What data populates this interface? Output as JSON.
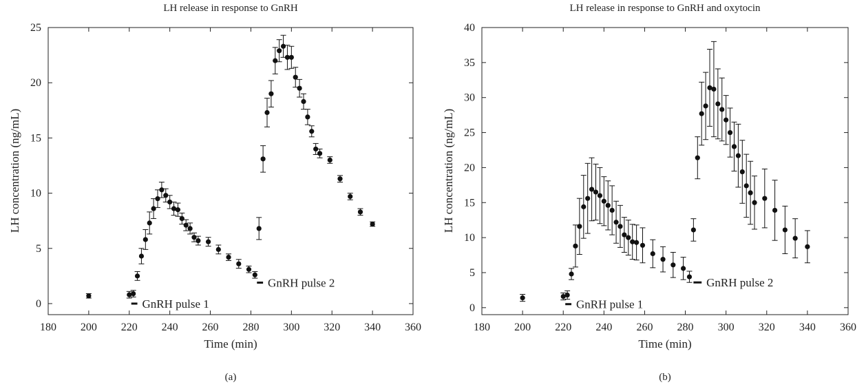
{
  "chart_data": [
    {
      "type": "scatter",
      "title": "LH release in response to GnRH",
      "xlabel": "Time (min)",
      "ylabel": "LH concentration (ng/mL)",
      "caption": "(a)",
      "xlim": [
        180,
        360
      ],
      "ylim": [
        -1,
        25
      ],
      "xticks": [
        180,
        200,
        220,
        240,
        260,
        280,
        300,
        320,
        340,
        360
      ],
      "yticks": [
        0,
        5,
        10,
        15,
        20,
        25
      ],
      "grid": false,
      "series": [
        {
          "x": [
            200,
            220,
            222,
            224,
            226,
            228,
            230,
            232,
            234,
            236,
            238,
            240,
            242,
            244,
            246,
            248,
            250,
            252,
            254,
            259,
            264,
            269,
            274,
            279,
            282,
            284,
            286,
            288,
            290,
            292,
            294,
            296,
            298,
            300,
            302,
            304,
            306,
            308,
            310,
            312,
            314,
            319,
            324,
            329,
            334,
            340
          ],
          "y": [
            0.7,
            0.8,
            0.9,
            2.5,
            4.3,
            5.8,
            7.3,
            8.6,
            9.5,
            10.3,
            9.8,
            9.2,
            8.6,
            8.5,
            7.7,
            7.1,
            6.8,
            6.0,
            5.7,
            5.6,
            4.9,
            4.2,
            3.6,
            3.1,
            2.6,
            6.8,
            13.1,
            17.3,
            19.0,
            22.0,
            22.9,
            23.3,
            22.3,
            22.3,
            20.5,
            19.5,
            18.3,
            16.9,
            15.6,
            14.0,
            13.6,
            13.0,
            11.3,
            9.7,
            8.3,
            7.2
          ],
          "err": [
            0.2,
            0.3,
            0.3,
            0.4,
            0.7,
            0.9,
            1.0,
            0.9,
            0.8,
            0.7,
            0.6,
            0.6,
            0.6,
            0.6,
            0.5,
            0.5,
            0.5,
            0.4,
            0.4,
            0.4,
            0.4,
            0.3,
            0.4,
            0.3,
            0.3,
            1.0,
            1.2,
            1.3,
            1.2,
            1.2,
            1.0,
            1.0,
            1.1,
            1.0,
            0.9,
            0.8,
            0.7,
            0.7,
            0.5,
            0.5,
            0.4,
            0.3,
            0.3,
            0.3,
            0.3,
            0.2
          ]
        }
      ],
      "pulse_bars": [
        {
          "x0": 221,
          "x1": 224,
          "y": 0.0
        },
        {
          "x0": 283,
          "x1": 286,
          "y": 1.9
        }
      ],
      "annotations": [
        {
          "text": "GnRH pulse 1",
          "x": 225,
          "y": 0.0
        },
        {
          "text": "GnRH pulse 2",
          "x": 287,
          "y": 1.9
        }
      ]
    },
    {
      "type": "scatter",
      "title": "LH release in response to GnRH and oxytocin",
      "xlabel": "Time (min)",
      "ylabel": "LH concentration (ng/mL)",
      "caption": "(b)",
      "xlim": [
        180,
        360
      ],
      "ylim": [
        -1,
        40
      ],
      "xticks": [
        180,
        200,
        220,
        240,
        260,
        280,
        300,
        320,
        340,
        360
      ],
      "yticks": [
        0,
        5,
        10,
        15,
        20,
        25,
        30,
        35,
        40
      ],
      "grid": false,
      "series": [
        {
          "x": [
            200,
            220,
            222,
            224,
            226,
            228,
            230,
            232,
            234,
            236,
            238,
            240,
            242,
            244,
            246,
            248,
            250,
            252,
            254,
            256,
            259,
            264,
            269,
            274,
            279,
            282,
            284,
            286,
            288,
            290,
            292,
            294,
            296,
            298,
            300,
            302,
            304,
            306,
            308,
            310,
            312,
            314,
            319,
            324,
            329,
            334,
            340
          ],
          "y": [
            1.4,
            1.6,
            1.8,
            4.8,
            8.8,
            11.6,
            14.4,
            15.6,
            16.9,
            16.5,
            16.0,
            15.2,
            14.6,
            13.9,
            12.2,
            11.6,
            10.4,
            10.0,
            9.4,
            9.3,
            8.9,
            7.7,
            6.9,
            6.1,
            5.6,
            4.4,
            11.1,
            21.4,
            27.7,
            28.8,
            31.4,
            31.2,
            29.1,
            28.3,
            26.8,
            25.0,
            23.0,
            21.7,
            19.4,
            17.4,
            16.4,
            15.0,
            15.6,
            13.9,
            11.1,
            9.9,
            8.7
          ],
          "err": [
            0.5,
            0.5,
            0.6,
            0.8,
            3.0,
            4.0,
            4.5,
            5.0,
            4.5,
            4.0,
            4.0,
            3.5,
            3.5,
            3.5,
            3.0,
            3.0,
            2.5,
            2.5,
            2.5,
            2.5,
            2.5,
            2.0,
            1.8,
            1.8,
            1.6,
            0.8,
            1.6,
            3.0,
            4.5,
            4.8,
            5.5,
            6.8,
            5.0,
            4.5,
            3.5,
            3.5,
            3.5,
            4.5,
            4.5,
            4.5,
            4.5,
            3.8,
            4.2,
            4.3,
            3.4,
            2.8,
            2.3
          ]
        }
      ],
      "pulse_bars": [
        {
          "x0": 221,
          "x1": 224,
          "y": 0.5
        },
        {
          "x0": 284,
          "x1": 288,
          "y": 3.6
        }
      ],
      "annotations": [
        {
          "text": "GnRH pulse 1",
          "x": 225,
          "y": 0.5
        },
        {
          "text": "GnRH pulse 2",
          "x": 289,
          "y": 3.6
        }
      ]
    }
  ]
}
